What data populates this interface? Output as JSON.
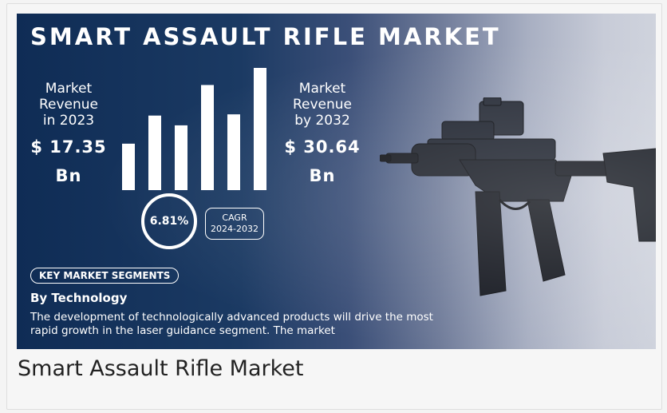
{
  "banner": {
    "title": "SMART ASSAULT RIFLE MARKET",
    "left_metric": {
      "label_lines": [
        "Market",
        "Revenue",
        "in 2023"
      ],
      "value_lines": [
        "$ 17.35",
        "Bn"
      ]
    },
    "right_metric": {
      "label_lines": [
        "Market",
        "Revenue",
        "by 2032"
      ],
      "value_lines": [
        "$ 30.64",
        "Bn"
      ]
    },
    "cagr": {
      "rate": "6.81%",
      "label": "CAGR",
      "period": "2024-2032"
    },
    "segments_label": "KEY MARKET SEGMENTS",
    "segment_heading": "By Technology",
    "description_lines": [
      "The development of technologically advanced products will drive the most",
      "rapid growth in the laser guidance segment. The market"
    ],
    "bar_levels": [
      0.38,
      0.61,
      0.53,
      0.86,
      0.62,
      1.0
    ]
  },
  "caption": "Smart Assault Rifle Market",
  "colors": {
    "banner_dark": "#0f2c55",
    "banner_light": "#cfd3dd",
    "text": "#ffffff"
  },
  "icons": {
    "rifle": "assault-rifle-image"
  }
}
